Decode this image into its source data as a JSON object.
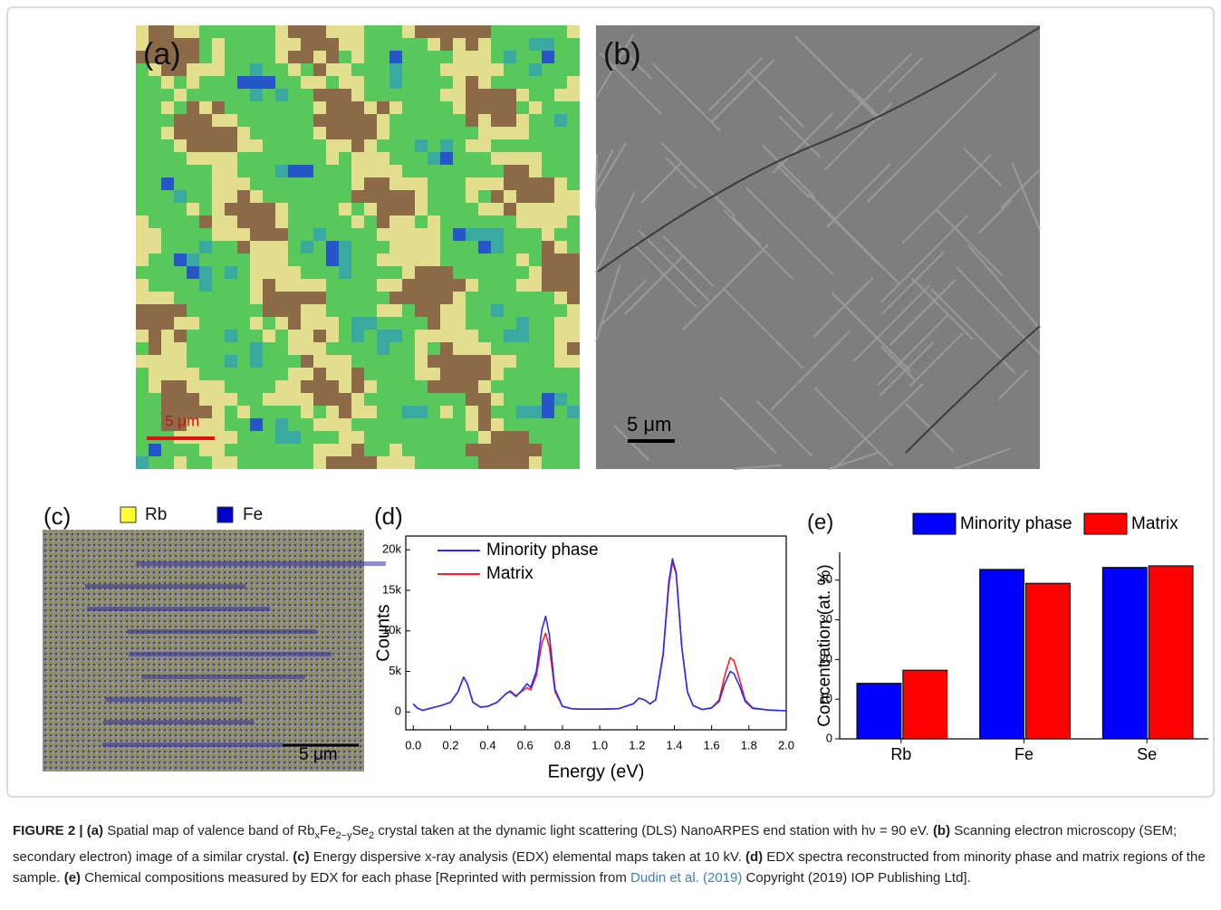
{
  "panels": {
    "a": {
      "label": "(a)",
      "scale_bar": "5 μm"
    },
    "b": {
      "label": "(b)",
      "scale_bar": "5 μm"
    },
    "c": {
      "label": "(c)",
      "legend": [
        "Rb",
        "Fe"
      ],
      "legend_colors": [
        "#ffff33",
        "#0000cc"
      ],
      "scale_bar": "5 μm"
    },
    "d": {
      "label": "(d)"
    },
    "e": {
      "label": "(e)"
    }
  },
  "chart_data": [
    {
      "type": "line",
      "xlabel": "Energy (eV)",
      "ylabel": "Counts",
      "xlim": [
        -0.04,
        2.0
      ],
      "ylim": [
        -2200,
        21700
      ],
      "xticks": [
        {
          "value": 0,
          "label": "0.0"
        },
        0.2,
        0.4,
        0.6,
        0.8,
        {
          "value": 1,
          "label": "1.0"
        },
        1.2,
        1.4,
        1.6,
        1.8,
        {
          "value": 2,
          "label": "2.0"
        }
      ],
      "yticks": [
        0,
        {
          "value": 5000,
          "label": "5k"
        },
        {
          "value": 10000,
          "label": "10k"
        },
        {
          "value": 15000,
          "label": "15k"
        },
        {
          "value": 20000,
          "label": "20k"
        }
      ],
      "x": [
        0,
        0.02,
        0.05,
        0.1,
        0.15,
        0.2,
        0.24,
        0.27,
        0.29,
        0.32,
        0.36,
        0.4,
        0.45,
        0.5,
        0.52,
        0.55,
        0.58,
        0.61,
        0.63,
        0.66,
        0.69,
        0.71,
        0.73,
        0.76,
        0.8,
        0.85,
        0.9,
        1.0,
        1.1,
        1.18,
        1.21,
        1.24,
        1.27,
        1.3,
        1.34,
        1.37,
        1.39,
        1.41,
        1.44,
        1.47,
        1.5,
        1.55,
        1.6,
        1.64,
        1.67,
        1.7,
        1.72,
        1.75,
        1.78,
        1.82,
        1.9,
        2.0
      ],
      "series": [
        {
          "name": "Minority phase",
          "color": "#2b2bff",
          "values": [
            1000,
            500,
            200,
            500,
            800,
            1200,
            2500,
            4300,
            3500,
            1200,
            600,
            700,
            1200,
            2300,
            2500,
            1900,
            2600,
            3500,
            3000,
            5000,
            10200,
            11800,
            9500,
            2800,
            700,
            400,
            350,
            350,
            400,
            1000,
            1700,
            1500,
            1000,
            1500,
            7200,
            16000,
            18900,
            17200,
            8000,
            2500,
            800,
            300,
            500,
            1300,
            3500,
            5000,
            4700,
            3200,
            1300,
            450,
            250,
            150
          ]
        },
        {
          "name": "Matrix",
          "color": "#ff2020",
          "values": [
            1000,
            500,
            200,
            500,
            800,
            1200,
            2500,
            4300,
            3500,
            1200,
            600,
            700,
            1200,
            2300,
            2600,
            2000,
            2500,
            3000,
            2700,
            4500,
            8500,
            9700,
            8000,
            2500,
            700,
            400,
            350,
            350,
            400,
            1000,
            1700,
            1500,
            1000,
            1500,
            7000,
            15500,
            18500,
            17000,
            8000,
            2500,
            800,
            300,
            500,
            1500,
            4500,
            6700,
            6300,
            4000,
            1500,
            500,
            250,
            150
          ]
        }
      ]
    },
    {
      "type": "bar",
      "ylabel": "Concentration (at. %)",
      "categories": [
        "Rb",
        "Fe",
        "Se"
      ],
      "ylim": [
        0,
        47
      ],
      "yticks": [
        0,
        10,
        20,
        30,
        40
      ],
      "series": [
        {
          "name": "Minority phase",
          "color": "#0000ff",
          "values": [
            14,
            42.7,
            43.2
          ]
        },
        {
          "name": "Matrix",
          "color": "#ff0000",
          "values": [
            17.3,
            39.2,
            43.6
          ]
        }
      ]
    }
  ],
  "caption": [
    {
      "text": "FIGURE 2 | (a)",
      "bold": true
    },
    {
      "text": " Spatial map of valence band of Rb"
    },
    {
      "text": "x",
      "sub": true
    },
    {
      "text": "Fe"
    },
    {
      "text": "2−y",
      "sub": true
    },
    {
      "text": "Se"
    },
    {
      "text": "2",
      "sub": true
    },
    {
      "text": " crystal taken at the dynamic light scattering (DLS) NanoARPES end station with hν = 90 eV. "
    },
    {
      "text": "(b)",
      "bold": true
    },
    {
      "text": " Scanning electron microscopy (SEM; secondary electron) image of a similar crystal. "
    },
    {
      "text": "(c)",
      "bold": true
    },
    {
      "text": " Energy dispersive x-ray analysis (EDX) elemental maps taken at 10 kV. "
    },
    {
      "text": "(d)",
      "bold": true
    },
    {
      "text": " EDX spectra reconstructed from minority phase and matrix regions of the sample. "
    },
    {
      "text": "(e)",
      "bold": true
    },
    {
      "text": " Chemical compositions measured by EDX for each phase [Reprinted with permission from "
    },
    {
      "text": "Dudin et al. (2019)",
      "link": true
    },
    {
      "text": " Copyright (2019) IOP Publishing Ltd]."
    }
  ]
}
